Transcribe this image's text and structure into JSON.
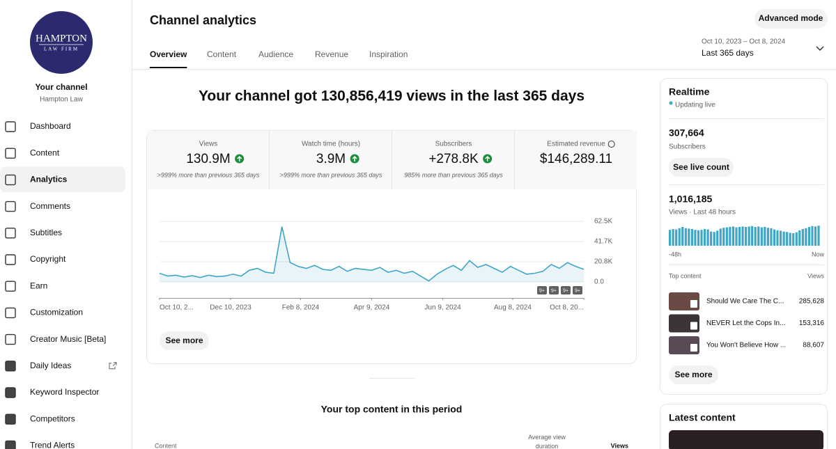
{
  "sidebar": {
    "logo": {
      "line1": "HAMPTON",
      "line2": "LAW FIRM"
    },
    "channel_label": "Your channel",
    "channel_name": "Hampton Law",
    "nav": [
      "Dashboard",
      "Content",
      "Analytics",
      "Comments",
      "Subtitles",
      "Copyright",
      "Earn",
      "Customization",
      "Creator Music [Beta]",
      "Daily Ideas",
      "Keyword Inspector",
      "Competitors",
      "Trend Alerts"
    ]
  },
  "header": {
    "title": "Channel analytics",
    "tabs": [
      "Overview",
      "Content",
      "Audience",
      "Revenue",
      "Inspiration"
    ],
    "button": "Advanced mode",
    "date_range": "Oct 10, 2023 – Oct 8, 2024",
    "period": "Last 365 days"
  },
  "overview": {
    "headline": "Your channel got 130,856,419 views in the last 365 days",
    "metrics": [
      {
        "label": "Views",
        "value": "130.9M",
        "note": ">999% more than previous 365 days"
      },
      {
        "label": "Watch time (hours)",
        "value": "3.9M",
        "note": ">999% more than previous 365 days"
      },
      {
        "label": "Subscribers",
        "value": "+278.8K",
        "note": "985% more than previous 365 days"
      },
      {
        "label": "Estimated revenue",
        "value": "$146,289.11"
      }
    ],
    "chart": {
      "type": "line",
      "color": "#3ea6c6",
      "x": [
        0,
        7,
        14,
        21,
        28,
        35,
        42,
        49,
        56,
        63,
        70,
        77,
        84,
        91,
        98,
        105,
        112,
        119,
        126,
        133,
        140,
        147,
        154,
        161,
        168,
        175,
        182,
        189,
        196,
        203,
        210,
        217,
        224,
        231,
        238,
        245,
        252,
        259,
        266,
        273,
        280,
        287,
        294,
        301,
        308,
        315,
        322,
        329,
        336,
        343,
        350,
        357,
        364
      ],
      "values": [
        9000,
        6000,
        7000,
        5000,
        6500,
        4500,
        7000,
        5500,
        6000,
        8000,
        6000,
        12000,
        14000,
        10000,
        9000,
        57000,
        20000,
        16000,
        14000,
        17000,
        13000,
        12000,
        16000,
        11000,
        14000,
        13000,
        12000,
        15000,
        10000,
        12000,
        9000,
        11000,
        6000,
        1000,
        8000,
        13000,
        17000,
        12000,
        22000,
        15000,
        18000,
        14000,
        10000,
        16000,
        12000,
        8000,
        9000,
        11000,
        18000,
        14000,
        20000,
        16000,
        13000
      ],
      "xlim": [
        0,
        364
      ],
      "xticks": [
        {
          "value": 0,
          "label": "Oct 10, 2..."
        },
        {
          "value": 61,
          "label": "Dec 10, 2023"
        },
        {
          "value": 121,
          "label": "Feb 8, 2024"
        },
        {
          "value": 182,
          "label": "Apr 9, 2024"
        },
        {
          "value": 243,
          "label": "Jun 9, 2024"
        },
        {
          "value": 303,
          "label": "Aug 8, 2024"
        },
        {
          "value": 364,
          "label": "Oct 8, 20..."
        }
      ],
      "ylim": [
        0,
        62500
      ],
      "yticks": [
        {
          "value": 0,
          "label": "0.0"
        },
        {
          "value": 20800,
          "label": "20.8K"
        },
        {
          "value": 41700,
          "label": "41.7K"
        },
        {
          "value": 62500,
          "label": "62.5K"
        }
      ],
      "grid": true,
      "annotations": [
        "9+",
        "9+",
        "9+",
        "9+"
      ]
    },
    "see_more": "See more",
    "top_content_title": "Your top content in this period",
    "table_headers": [
      "Content",
      "Average view duration",
      "Views"
    ]
  },
  "realtime": {
    "title": "Realtime",
    "status": "Updating live",
    "subscribers": "307,664",
    "subscribers_label": "Subscribers",
    "live_button": "See live count",
    "views": "1,016,185",
    "views_label": "Views · Last 48 hours",
    "chart": {
      "type": "bar",
      "color": "#3ea6c6",
      "ylim": [
        0,
        25000
      ],
      "values": [
        19000,
        20000,
        19500,
        21000,
        22500,
        21000,
        20500,
        20000,
        19000,
        18500,
        19000,
        20000,
        19500,
        17000,
        16500,
        18000,
        20500,
        21500,
        22000,
        22500,
        23000,
        22000,
        22500,
        23000,
        22500,
        23000,
        23500,
        22500,
        23000,
        22000,
        22500,
        21500,
        21000,
        19500,
        18500,
        18000,
        17000,
        16500,
        15500,
        15000,
        16000,
        18500,
        20000,
        21000,
        22500,
        23500,
        23000,
        24000
      ]
    },
    "x_start": "-48h",
    "x_end": "Now",
    "top_content_label": "Top content",
    "views_col": "Views",
    "top_content": [
      {
        "title": "Should We Care The C...",
        "views": "285,628"
      },
      {
        "title": "NEVER Let the Cops In...",
        "views": "153,316"
      },
      {
        "title": "You Won't Believe How ...",
        "views": "88,607"
      }
    ],
    "see_more": "See more"
  },
  "latest_content": {
    "title": "Latest content"
  }
}
